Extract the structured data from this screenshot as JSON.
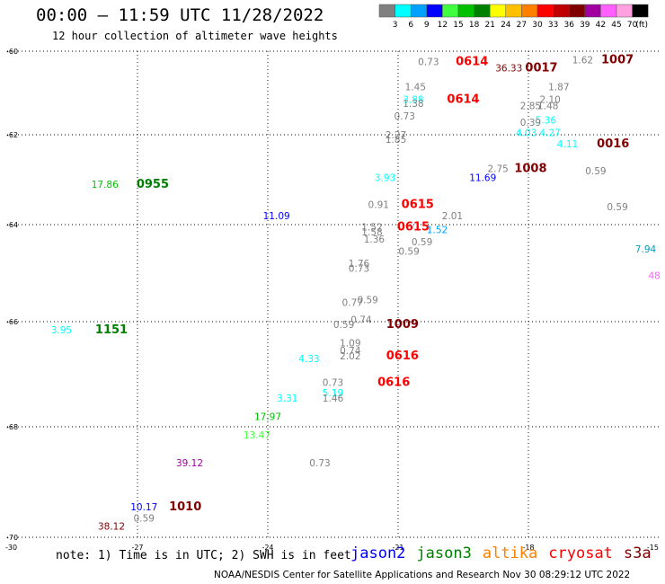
{
  "header": {
    "title": "00:00 – 11:59 UTC 11/28/2022",
    "subtitle": "12 hour collection of altimeter wave heights"
  },
  "legend": {
    "unit": "(ft)",
    "bins": [
      {
        "label": "3",
        "color": "#808080"
      },
      {
        "label": "6",
        "color": "#00ffff"
      },
      {
        "label": "9",
        "color": "#00a0ff"
      },
      {
        "label": "12",
        "color": "#0000ff"
      },
      {
        "label": "15",
        "color": "#40ff40"
      },
      {
        "label": "18",
        "color": "#00c000"
      },
      {
        "label": "21",
        "color": "#008000"
      },
      {
        "label": "24",
        "color": "#ffff00"
      },
      {
        "label": "27",
        "color": "#ffc000"
      },
      {
        "label": "30",
        "color": "#ff8000"
      },
      {
        "label": "33",
        "color": "#ff0000"
      },
      {
        "label": "36",
        "color": "#c00000"
      },
      {
        "label": "39",
        "color": "#800000"
      },
      {
        "label": "42",
        "color": "#a000a0"
      },
      {
        "label": "45",
        "color": "#ff60ff"
      },
      {
        "label": "70",
        "color": "#ffa0e0"
      },
      {
        "label": "",
        "color": "#000000"
      }
    ]
  },
  "axes": {
    "lon": {
      "min": -30,
      "max": -15,
      "ticks": [
        "-27",
        "-24",
        "-21",
        "-18",
        "-15"
      ],
      "corner": "-30"
    },
    "lat": {
      "min": -70,
      "max": -60,
      "ticks": [
        "-60",
        "-62",
        "-64",
        "-66",
        "-68",
        "-70"
      ]
    }
  },
  "observations": [
    {
      "text": "0.73",
      "lon": -20.3,
      "lat": -60.25,
      "color": "#808080"
    },
    {
      "text": "0614",
      "lon": -19.3,
      "lat": -60.25,
      "color": "#ff0000",
      "time": true
    },
    {
      "text": "36.33",
      "lon": -18.45,
      "lat": -60.4,
      "color": "#800000"
    },
    {
      "text": "0017",
      "lon": -17.7,
      "lat": -60.4,
      "color": "#800000",
      "time": true
    },
    {
      "text": "1.62",
      "lon": -16.75,
      "lat": -60.2,
      "color": "#808080"
    },
    {
      "text": "1007",
      "lon": -15.95,
      "lat": -60.2,
      "color": "#800000",
      "time": true
    },
    {
      "text": "1.87",
      "lon": -17.3,
      "lat": -60.85,
      "color": "#808080"
    },
    {
      "text": "1.45",
      "lon": -20.6,
      "lat": -60.85,
      "color": "#808080"
    },
    {
      "text": "3.88",
      "lon": -20.65,
      "lat": -61.15,
      "color": "#00ffff"
    },
    {
      "text": "1.38",
      "lon": -20.65,
      "lat": -61.25,
      "color": "#808080"
    },
    {
      "text": "0614",
      "lon": -19.5,
      "lat": -61.15,
      "color": "#ff0000",
      "time": true
    },
    {
      "text": "2.10",
      "lon": -17.5,
      "lat": -61.15,
      "color": "#808080"
    },
    {
      "text": "2.85",
      "lon": -17.95,
      "lat": -61.3,
      "color": "#808080"
    },
    {
      "text": "1.48",
      "lon": -17.55,
      "lat": -61.3,
      "color": "#808080"
    },
    {
      "text": "0.73",
      "lon": -20.85,
      "lat": -61.55,
      "color": "#808080"
    },
    {
      "text": "5.36",
      "lon": -17.6,
      "lat": -61.65,
      "color": "#00ffff"
    },
    {
      "text": "0.39",
      "lon": -17.95,
      "lat": -61.7,
      "color": "#808080"
    },
    {
      "text": "4.03",
      "lon": -18.05,
      "lat": -61.95,
      "color": "#00ffff"
    },
    {
      "text": "4.27",
      "lon": -17.5,
      "lat": -61.95,
      "color": "#00ffff"
    },
    {
      "text": "2.27",
      "lon": -21.05,
      "lat": -62.0,
      "color": "#808080"
    },
    {
      "text": "1.85",
      "lon": -21.05,
      "lat": -62.1,
      "color": "#808080"
    },
    {
      "text": "4.11",
      "lon": -17.1,
      "lat": -62.2,
      "color": "#00ffff"
    },
    {
      "text": "0016",
      "lon": -16.05,
      "lat": -62.2,
      "color": "#800000",
      "time": true
    },
    {
      "text": "2.75",
      "lon": -18.7,
      "lat": -62.75,
      "color": "#808080"
    },
    {
      "text": "1008",
      "lon": -17.95,
      "lat": -62.75,
      "color": "#800000",
      "time": true
    },
    {
      "text": "0.59",
      "lon": -16.45,
      "lat": -62.8,
      "color": "#808080"
    },
    {
      "text": "11.69",
      "lon": -19.05,
      "lat": -62.95,
      "color": "#0000ff"
    },
    {
      "text": "3.93",
      "lon": -21.3,
      "lat": -62.95,
      "color": "#00ffff"
    },
    {
      "text": "17.86",
      "lon": -27.75,
      "lat": -63.1,
      "color": "#00c000"
    },
    {
      "text": "0955",
      "lon": -26.65,
      "lat": -63.1,
      "color": "#008000",
      "time": true
    },
    {
      "text": "0.91",
      "lon": -21.45,
      "lat": -63.55,
      "color": "#808080"
    },
    {
      "text": "0615",
      "lon": -20.55,
      "lat": -63.55,
      "color": "#ff0000",
      "time": true
    },
    {
      "text": "0.59",
      "lon": -15.95,
      "lat": -63.6,
      "color": "#808080"
    },
    {
      "text": "11.09",
      "lon": -23.8,
      "lat": -63.8,
      "color": "#0000ff"
    },
    {
      "text": "2.01",
      "lon": -19.75,
      "lat": -63.8,
      "color": "#808080"
    },
    {
      "text": "1.52",
      "lon": -21.6,
      "lat": -64.05,
      "color": "#808080"
    },
    {
      "text": "1.58",
      "lon": -21.6,
      "lat": -64.15,
      "color": "#808080"
    },
    {
      "text": "0615",
      "lon": -20.65,
      "lat": -64.05,
      "color": "#ff0000",
      "time": true
    },
    {
      "text": "1.52",
      "lon": -20.1,
      "lat": -64.1,
      "color": "#00a0ff"
    },
    {
      "text": "1.36",
      "lon": -21.55,
      "lat": -64.3,
      "color": "#808080"
    },
    {
      "text": "0.59",
      "lon": -20.45,
      "lat": -64.35,
      "color": "#808080"
    },
    {
      "text": "0.59",
      "lon": -20.75,
      "lat": -64.55,
      "color": "#808080"
    },
    {
      "text": "7.94",
      "lon": -15.3,
      "lat": -64.5,
      "color": "#00a0c0"
    },
    {
      "text": "1.76",
      "lon": -21.9,
      "lat": -64.8,
      "color": "#808080"
    },
    {
      "text": "0.73",
      "lon": -21.9,
      "lat": -64.9,
      "color": "#808080"
    },
    {
      "text": "48",
      "lon": -15.1,
      "lat": -65.05,
      "color": "#ff60ff"
    },
    {
      "text": "0.59",
      "lon": -21.7,
      "lat": -65.55,
      "color": "#808080"
    },
    {
      "text": "0.77",
      "lon": -22.05,
      "lat": -65.6,
      "color": "#808080"
    },
    {
      "text": "0.74",
      "lon": -21.85,
      "lat": -65.95,
      "color": "#808080"
    },
    {
      "text": "0.59",
      "lon": -22.25,
      "lat": -66.05,
      "color": "#808080"
    },
    {
      "text": "1009",
      "lon": -20.9,
      "lat": -66.05,
      "color": "#800000",
      "time": true
    },
    {
      "text": "3.95",
      "lon": -28.75,
      "lat": -66.15,
      "color": "#00ffff"
    },
    {
      "text": "1151",
      "lon": -27.6,
      "lat": -66.15,
      "color": "#008000",
      "time": true
    },
    {
      "text": "1.09",
      "lon": -22.1,
      "lat": -66.4,
      "color": "#808080"
    },
    {
      "text": "0.74",
      "lon": -22.1,
      "lat": -66.55,
      "color": "#808080"
    },
    {
      "text": "2.02",
      "lon": -22.1,
      "lat": -66.65,
      "color": "#808080"
    },
    {
      "text": "4.33",
      "lon": -23.05,
      "lat": -66.7,
      "color": "#00ffff"
    },
    {
      "text": "0616",
      "lon": -20.9,
      "lat": -66.65,
      "color": "#ff0000",
      "time": true
    },
    {
      "text": "0.73",
      "lon": -22.5,
      "lat": -67.15,
      "color": "#808080"
    },
    {
      "text": "0616",
      "lon": -21.1,
      "lat": -67.15,
      "color": "#ff0000",
      "time": true
    },
    {
      "text": "5.19",
      "lon": -22.5,
      "lat": -67.35,
      "color": "#00ffff"
    },
    {
      "text": "1.46",
      "lon": -22.5,
      "lat": -67.45,
      "color": "#808080"
    },
    {
      "text": "3.31",
      "lon": -23.55,
      "lat": -67.45,
      "color": "#00ffff"
    },
    {
      "text": "17.97",
      "lon": -24.0,
      "lat": -67.8,
      "color": "#00c000"
    },
    {
      "text": "13.47",
      "lon": -24.25,
      "lat": -68.15,
      "color": "#40ff40"
    },
    {
      "text": "39.12",
      "lon": -25.8,
      "lat": -68.65,
      "color": "#a000a0"
    },
    {
      "text": "0.73",
      "lon": -22.8,
      "lat": -68.65,
      "color": "#808080"
    },
    {
      "text": "10.17",
      "lon": -26.85,
      "lat": -69.45,
      "color": "#0000ff"
    },
    {
      "text": "1010",
      "lon": -25.9,
      "lat": -69.45,
      "color": "#800000",
      "time": true
    },
    {
      "text": "0.59",
      "lon": -26.85,
      "lat": -69.65,
      "color": "#808080"
    },
    {
      "text": "38.12",
      "lon": -27.6,
      "lat": -69.8,
      "color": "#800000"
    }
  ],
  "footer": {
    "note": "note: 1) Time is in UTC; 2) SWH is in feet",
    "satellites": [
      {
        "name": "jason2",
        "color": "#0000ff"
      },
      {
        "name": "jason3",
        "color": "#008000"
      },
      {
        "name": "altika",
        "color": "#ff8000"
      },
      {
        "name": "cryosat",
        "color": "#ff0000"
      },
      {
        "name": "s3a",
        "color": "#800000"
      }
    ],
    "credit": "NOAA/NESDIS Center for Satellite Applications and Research    Nov 30 08:29:12 UTC 2022"
  }
}
